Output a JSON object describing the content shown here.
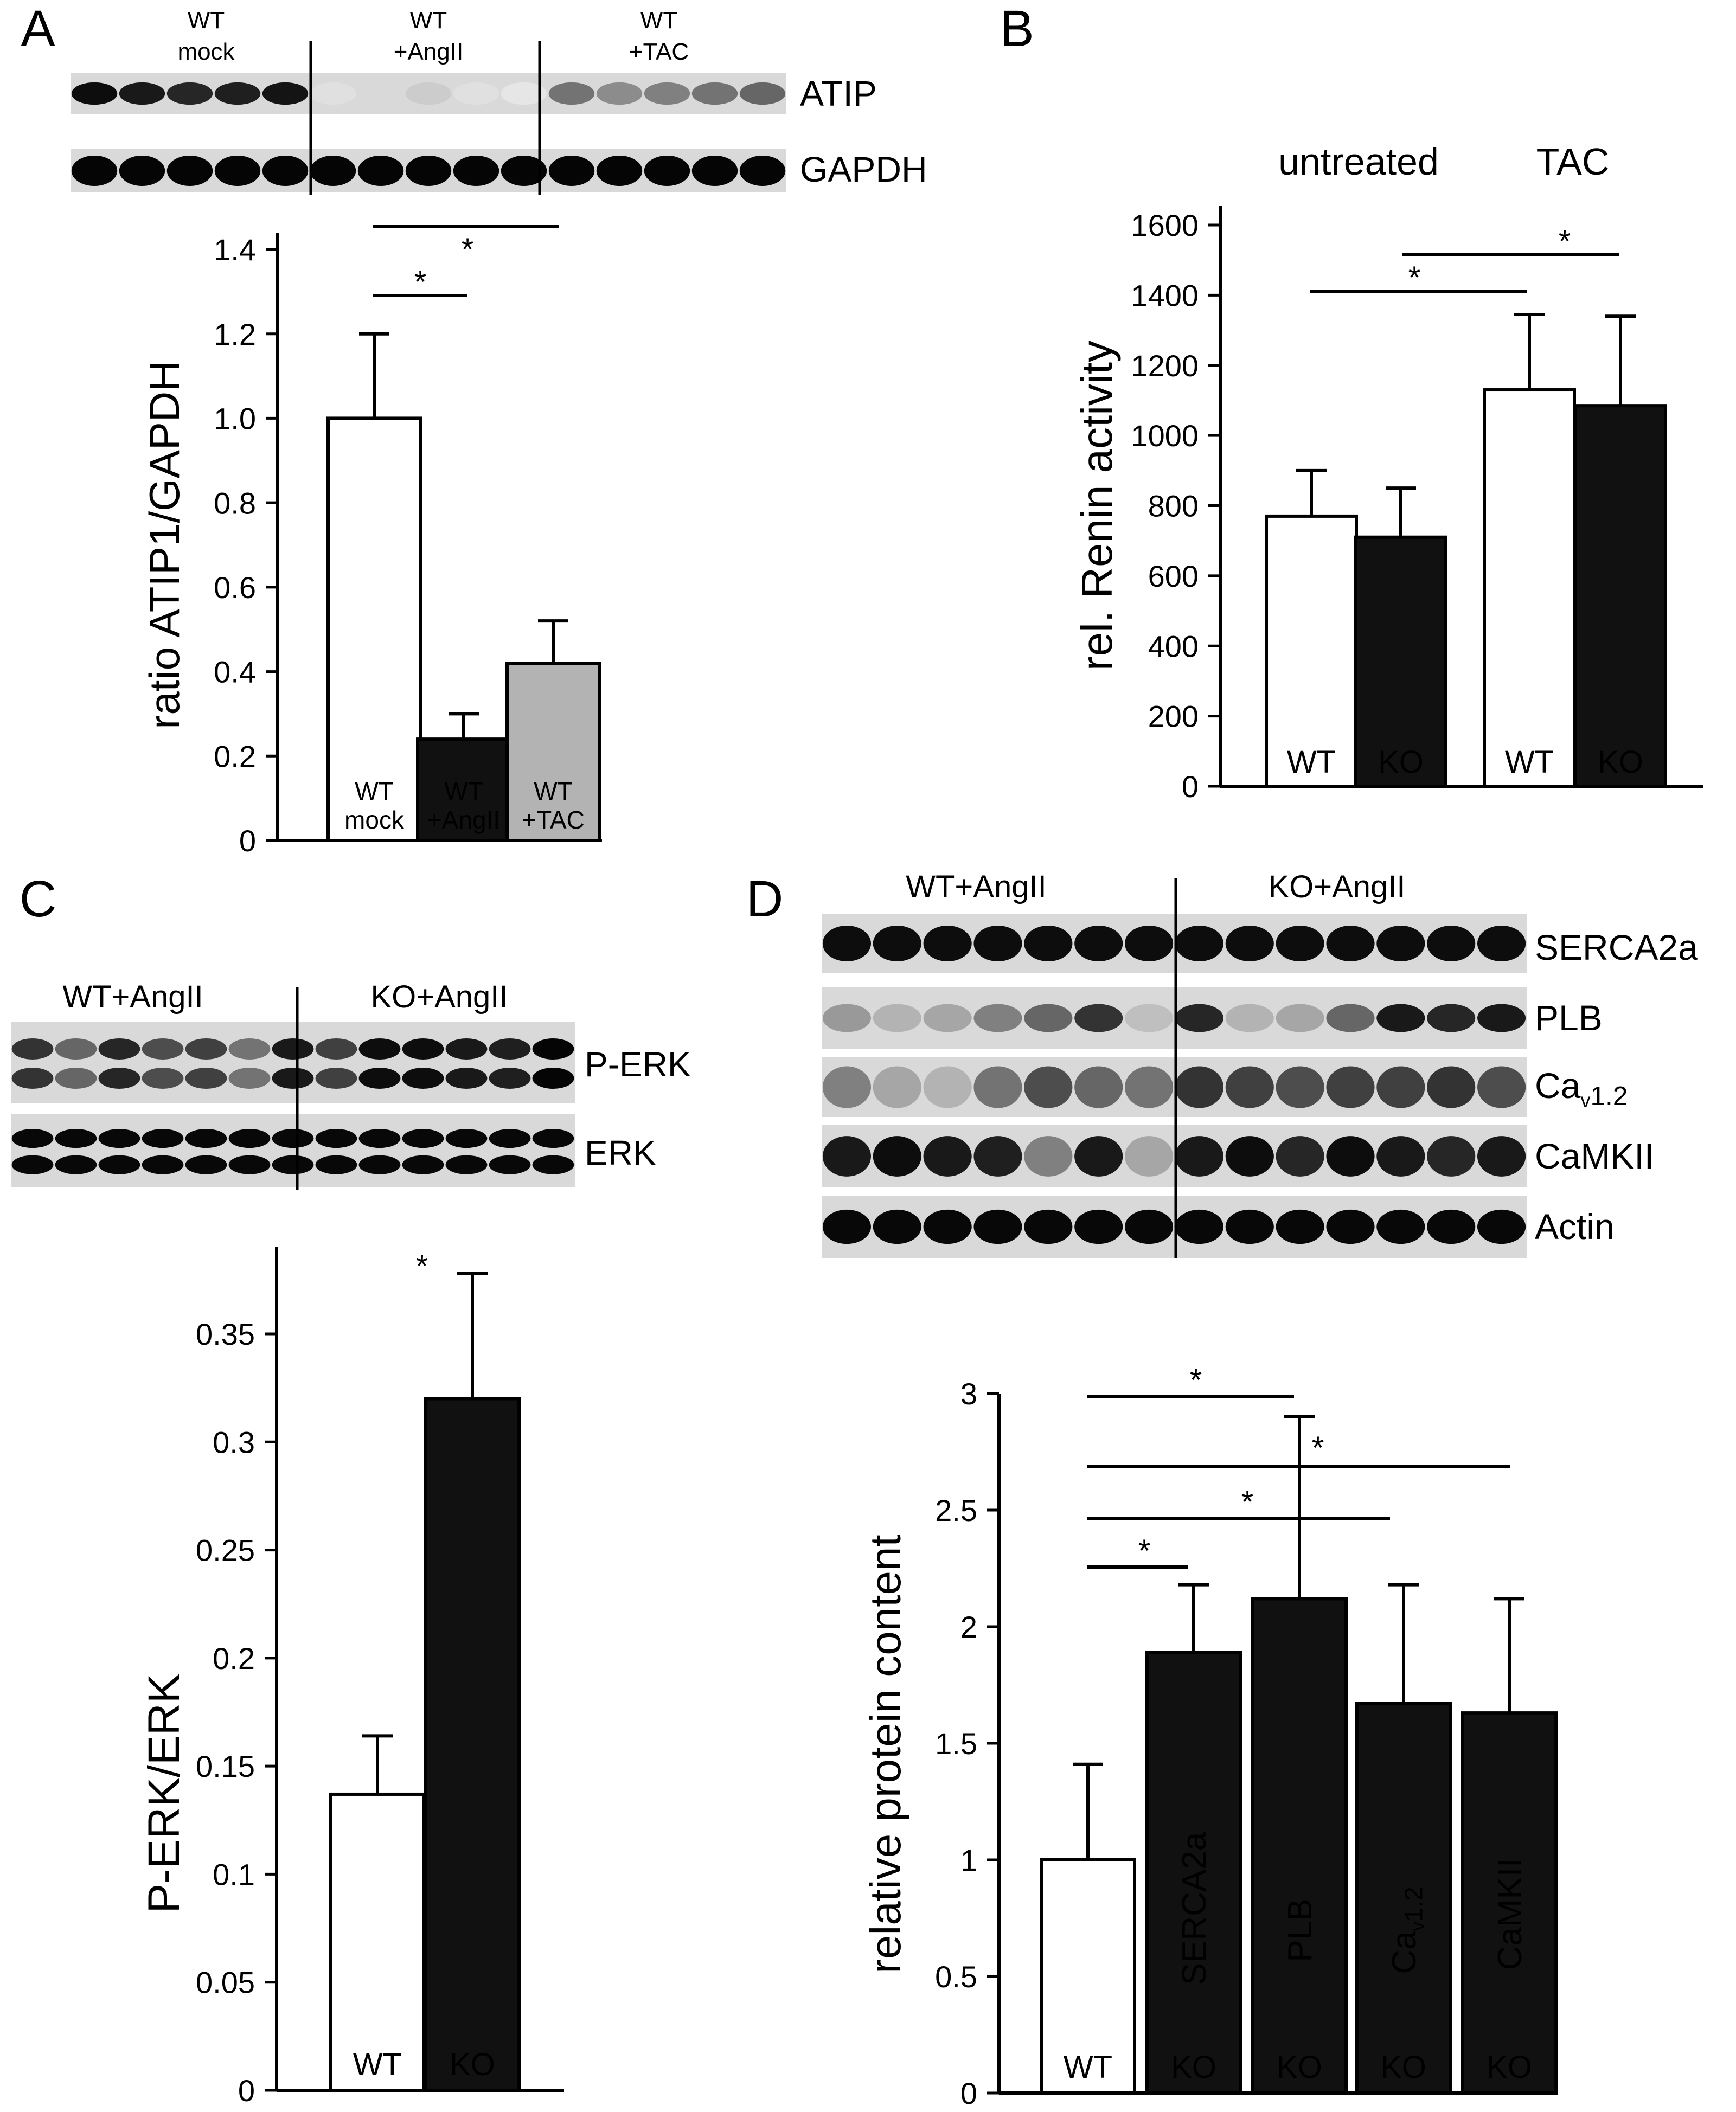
{
  "panels": {
    "A": {
      "letter": "A",
      "blot": {
        "group_labels": [
          [
            "WT",
            "mock"
          ],
          [
            "WT",
            "+AngII"
          ],
          [
            "WT",
            "+TAC"
          ]
        ],
        "row_labels": [
          "ATIP",
          "GAPDH"
        ]
      }
    },
    "B": {
      "letter": "B",
      "group_labels": [
        "untreated",
        "TAC"
      ]
    },
    "C": {
      "letter": "C",
      "blot": {
        "group_labels": [
          "WT+AngII",
          "KO+AngII"
        ],
        "row_labels": [
          "P-ERK",
          "ERK"
        ]
      }
    },
    "D": {
      "letter": "D",
      "blot": {
        "group_labels": [
          "WT+AngII",
          "KO+AngII"
        ],
        "row_labels": [
          "SERCA2a",
          "PLB",
          "Cav1.2",
          "CaMKII",
          "Actin"
        ],
        "ca_label": {
          "main": "Ca",
          "sub": "v",
          "rest": "1.2"
        }
      }
    }
  },
  "colors": {
    "white_bar": "#ffffff",
    "black_bar": "#111111",
    "gray_bar": "#b3b3b3",
    "blot_bg": "#d9d9d9"
  },
  "chart_data": [
    {
      "panel": "A",
      "type": "bar",
      "ylabel": "ratio ATIP1/GAPDH",
      "ylim": [
        0,
        1.4
      ],
      "yticks": [
        "0",
        "0.2",
        "0.4",
        "0.6",
        "0.8",
        "1.0",
        "1.2",
        "1.4"
      ],
      "bars": [
        {
          "label": [
            "WT",
            "mock"
          ],
          "value": 1.0,
          "error": 0.2,
          "color": "white"
        },
        {
          "label": [
            "WT",
            "+AngII"
          ],
          "value": 0.24,
          "error": 0.06,
          "color": "black"
        },
        {
          "label": [
            "WT",
            "+TAC"
          ],
          "value": 0.42,
          "error": 0.1,
          "color": "gray"
        }
      ],
      "significance": [
        {
          "from": 0,
          "to": 1,
          "mark": "*"
        },
        {
          "from": 0,
          "to": 2,
          "mark": "*"
        }
      ]
    },
    {
      "panel": "B",
      "type": "bar",
      "ylabel": "rel. Renin activity",
      "ylim": [
        0,
        1600
      ],
      "yticks": [
        "0",
        "200",
        "400",
        "600",
        "800",
        "1000",
        "1200",
        "1400",
        "1600"
      ],
      "bars": [
        {
          "label": "WT",
          "value": 770,
          "error": 130,
          "color": "white"
        },
        {
          "label": "KO",
          "value": 710,
          "error": 140,
          "color": "black"
        },
        {
          "label": "WT",
          "value": 1130,
          "error": 215,
          "color": "white"
        },
        {
          "label": "KO",
          "value": 1085,
          "error": 255,
          "color": "black"
        }
      ],
      "significance": [
        {
          "from": 0,
          "to": 2,
          "mark": "*"
        },
        {
          "from": 1,
          "to": 3,
          "mark": "*"
        }
      ]
    },
    {
      "panel": "C",
      "type": "bar",
      "ylabel": "P-ERK/ERK",
      "ylim": [
        0,
        0.35
      ],
      "yticks": [
        "0",
        "0.05",
        "0.1",
        "0.15",
        "0.2",
        "0.25",
        "0.3",
        "0.35"
      ],
      "bars": [
        {
          "label": "WT",
          "value": 0.137,
          "error": 0.027,
          "color": "white"
        },
        {
          "label": "KO",
          "value": 0.32,
          "error": 0.058,
          "color": "black"
        }
      ],
      "significance_marks": [
        {
          "bar": 0,
          "mark": "*"
        }
      ]
    },
    {
      "panel": "D",
      "type": "bar",
      "ylabel": "relative protein content",
      "ylim": [
        0,
        3
      ],
      "yticks": [
        "0",
        "0.5",
        "1",
        "1.5",
        "2",
        "2.5",
        "3"
      ],
      "bars": [
        {
          "label": "WT",
          "inner": "",
          "value": 1.0,
          "error": 0.41,
          "color": "white"
        },
        {
          "label": "KO",
          "inner": "SERCA2a",
          "value": 1.89,
          "error": 0.29,
          "color": "black"
        },
        {
          "label": "KO",
          "inner": "PLB",
          "value": 2.12,
          "error": 0.78,
          "color": "black"
        },
        {
          "label": "KO",
          "inner": "Cav1.2",
          "value": 1.67,
          "error": 0.51,
          "color": "black"
        },
        {
          "label": "KO",
          "inner": "CaMKII",
          "value": 1.63,
          "error": 0.49,
          "color": "black"
        }
      ],
      "significance": [
        {
          "from": 0,
          "to": 2,
          "mark": "*"
        },
        {
          "from": 0,
          "to": 4,
          "mark": "*"
        },
        {
          "from": 0,
          "to": 3,
          "mark": "*"
        },
        {
          "from": 0,
          "to": 1,
          "mark": "*"
        }
      ]
    }
  ]
}
